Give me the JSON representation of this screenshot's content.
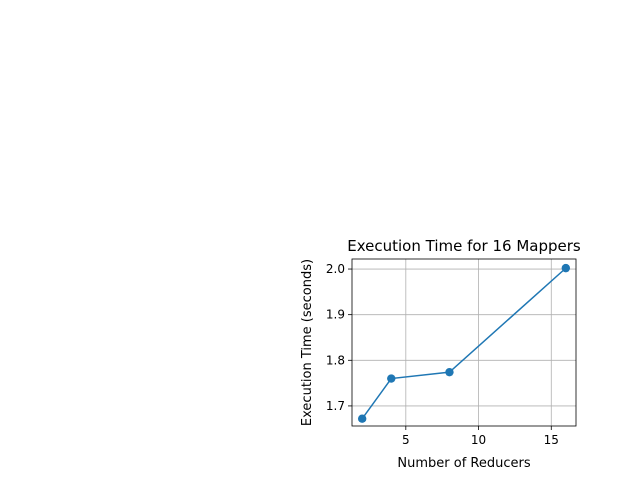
{
  "chart_data": {
    "type": "line",
    "title": "Execution Time for 16 Mappers",
    "xlabel": "Number of Reducers",
    "ylabel": "Execution Time (seconds)",
    "xlim": [
      1.3,
      16.7
    ],
    "ylim": [
      1.656,
      2.022
    ],
    "xticks": [
      5,
      10,
      15
    ],
    "xtick_labels": [
      "5",
      "10",
      "15"
    ],
    "yticks": [
      1.7,
      1.8,
      1.9,
      2.0
    ],
    "ytick_labels": [
      "1.7",
      "1.8",
      "1.9",
      "2.0"
    ],
    "grid": true,
    "marker": "circle",
    "series": [
      {
        "color": "#1f77b4",
        "x": [
          2,
          4,
          8,
          16
        ],
        "y": [
          1.672,
          1.76,
          1.774,
          2.002
        ]
      }
    ]
  }
}
